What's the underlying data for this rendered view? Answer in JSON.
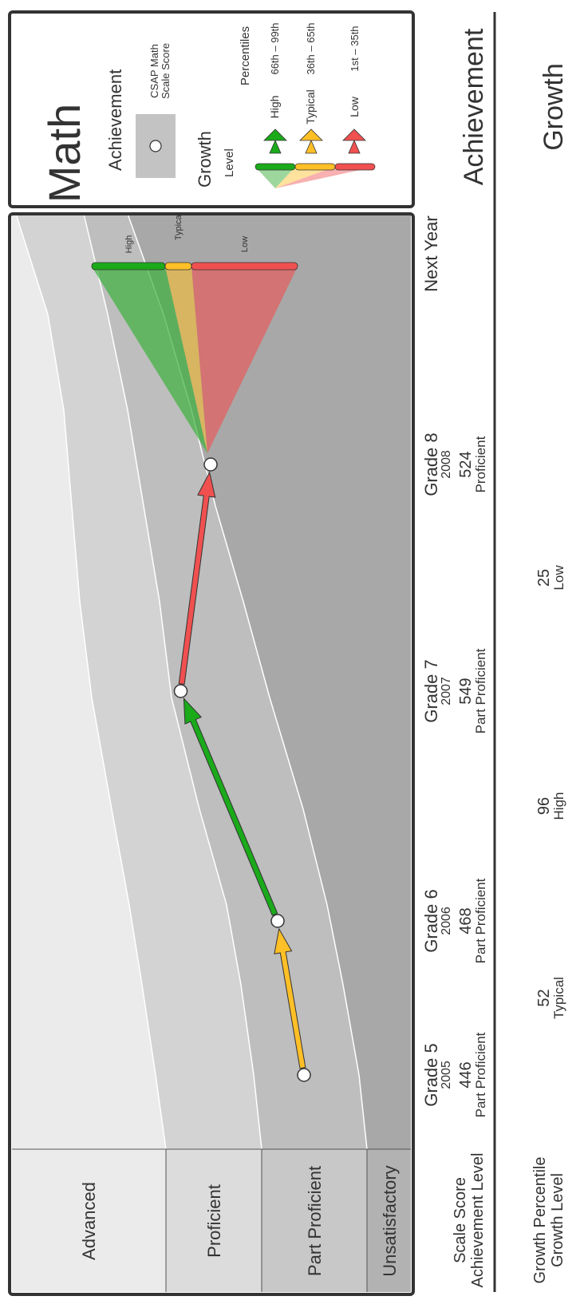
{
  "title": "Math",
  "legend": {
    "achievement_heading": "Achievement",
    "score_caption": [
      "CSAP Math",
      "Scale Score"
    ],
    "growth_heading": "Growth",
    "level_heading": "Level",
    "percentiles_heading": "Percentiles",
    "items": [
      {
        "label": "High",
        "range": "66th – 99th",
        "color": "#1aaa1a"
      },
      {
        "label": "Typical",
        "range": "36th – 65th",
        "color": "#ffbf26"
      },
      {
        "label": "Low",
        "range": "1st – 35th",
        "color": "#f05050"
      }
    ]
  },
  "levels": [
    "Advanced",
    "Proficient",
    "Part Proficient",
    "Unsatisfactory"
  ],
  "row_labels": {
    "scale_score": "Scale Score",
    "achievement_level": "Achievement Level",
    "growth_percentile": "Growth Percentile",
    "growth_level": "Growth Level"
  },
  "section_labels": {
    "achievement": "Achievement",
    "growth": "Growth"
  },
  "projection_labels": [
    "High",
    "Typical",
    "Low"
  ],
  "chart_data": {
    "type": "line",
    "x": [
      "Grade 5",
      "Grade 6",
      "Grade 7",
      "Grade 8",
      "Next Year"
    ],
    "years": [
      "2005",
      "2006",
      "2007",
      "2008",
      ""
    ],
    "scale_scores": [
      446,
      468,
      549,
      524
    ],
    "achievement_levels": [
      "Part Proficient",
      "Part Proficient",
      "Part Proficient",
      "Proficient"
    ],
    "growth_percentiles": [
      52,
      96,
      25
    ],
    "growth_levels": [
      "Typical",
      "High",
      "Low"
    ],
    "growth_colors": [
      "#ffbf26",
      "#1aaa1a",
      "#f05050"
    ],
    "bands": [
      "Advanced",
      "Proficient",
      "Part Proficient",
      "Unsatisfactory"
    ],
    "projection": [
      "High",
      "Typical",
      "Low"
    ]
  }
}
